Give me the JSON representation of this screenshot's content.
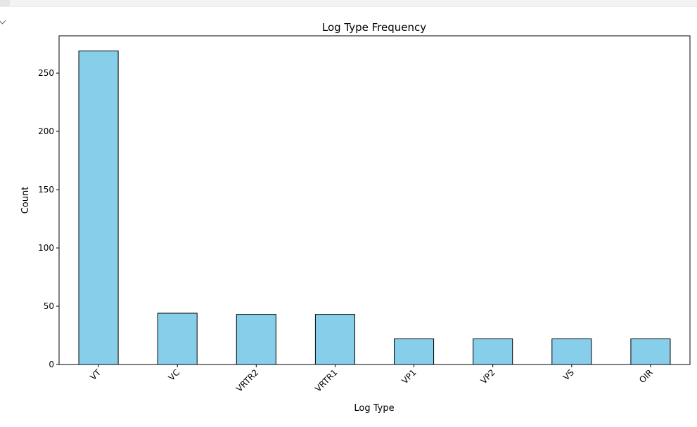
{
  "chart_data": {
    "type": "bar",
    "title": "Log Type Frequency",
    "xlabel": "Log Type",
    "ylabel": "Count",
    "categories": [
      "VT",
      "VC",
      "VRTR2",
      "VRTR1",
      "VP1",
      "VP2",
      "VS",
      "OIR"
    ],
    "values": [
      269,
      44,
      43,
      43,
      22,
      22,
      22,
      22
    ],
    "ylim": [
      0,
      282
    ],
    "yticks": [
      0,
      50,
      100,
      150,
      200,
      250
    ],
    "grid": false,
    "bar_color": "#87CEEB",
    "edge_color": "#000000"
  }
}
